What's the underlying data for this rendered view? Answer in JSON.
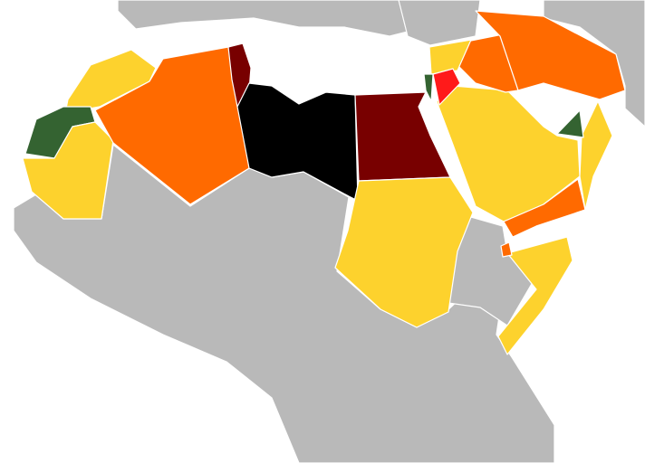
{
  "colors": {
    "sea": "#ffffff",
    "other_land": "#b9b9b9",
    "yellow": "#fdd22d",
    "orange": "#ff6a00",
    "dark_red": "#780000",
    "black": "#000000",
    "green": "#346331",
    "red": "#ff1a1a",
    "border": "#ffffff"
  },
  "regions": [
    {
      "id": "europe",
      "category": "other_land"
    },
    {
      "id": "turkey",
      "category": "other_land"
    },
    {
      "id": "east",
      "category": "other_land"
    },
    {
      "id": "africa-south",
      "category": "other_land"
    },
    {
      "id": "ethiopia",
      "category": "other_land"
    },
    {
      "id": "morocco",
      "category": "yellow"
    },
    {
      "id": "western-sahara",
      "category": "green"
    },
    {
      "id": "mauritania",
      "category": "yellow"
    },
    {
      "id": "algeria",
      "category": "orange"
    },
    {
      "id": "tunisia",
      "category": "dark_red"
    },
    {
      "id": "libya",
      "category": "black"
    },
    {
      "id": "egypt",
      "category": "dark_red"
    },
    {
      "id": "sudan",
      "category": "yellow"
    },
    {
      "id": "saudi-arabia",
      "category": "yellow"
    },
    {
      "id": "yemen",
      "category": "orange"
    },
    {
      "id": "oman",
      "category": "yellow"
    },
    {
      "id": "uae",
      "category": "green"
    },
    {
      "id": "iraq",
      "category": "orange"
    },
    {
      "id": "iran",
      "category": "orange"
    },
    {
      "id": "syria",
      "category": "yellow"
    },
    {
      "id": "jordan",
      "category": "red"
    },
    {
      "id": "israel-lebanon",
      "category": "green"
    },
    {
      "id": "somalia",
      "category": "yellow"
    },
    {
      "id": "djibouti",
      "category": "orange"
    }
  ]
}
